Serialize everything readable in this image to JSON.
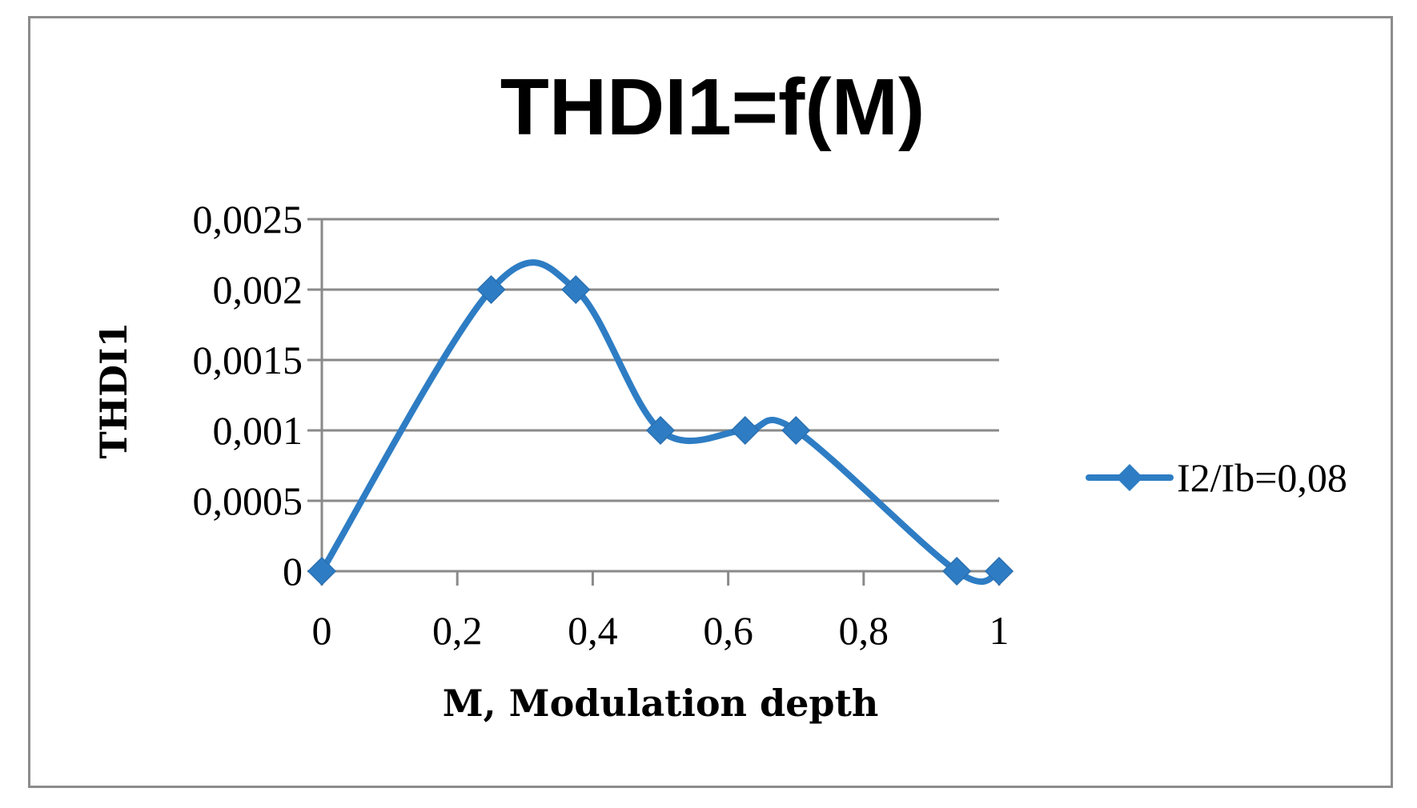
{
  "chart_data": {
    "type": "line",
    "title": "THDI1=f(M)",
    "xlabel": "M, Modulation depth",
    "ylabel": "THDI1",
    "xlim": [
      0,
      1
    ],
    "ylim": [
      0,
      0.0025
    ],
    "x_ticks": [
      0,
      0.2,
      0.4,
      0.6,
      0.8,
      1
    ],
    "x_tick_labels": [
      "0",
      "0,2",
      "0,4",
      "0,6",
      "0,8",
      "1"
    ],
    "y_ticks": [
      0,
      0.0005,
      0.001,
      0.0015,
      0.002,
      0.0025
    ],
    "y_tick_labels": [
      "0",
      "0,0005",
      "0,001",
      "0,0015",
      "0,002",
      "0,0025"
    ],
    "grid": "horizontal",
    "legend_position": "right",
    "series": [
      {
        "name": "I2/Ib=0,08",
        "color": "#2e7dc4",
        "marker": "diamond",
        "smooth": true,
        "x": [
          0,
          0.25,
          0.375,
          0.5,
          0.625,
          0.7,
          0.9375,
          1
        ],
        "y": [
          0,
          0.002,
          0.002,
          0.001,
          0.001,
          0.001,
          0,
          0
        ]
      }
    ]
  }
}
